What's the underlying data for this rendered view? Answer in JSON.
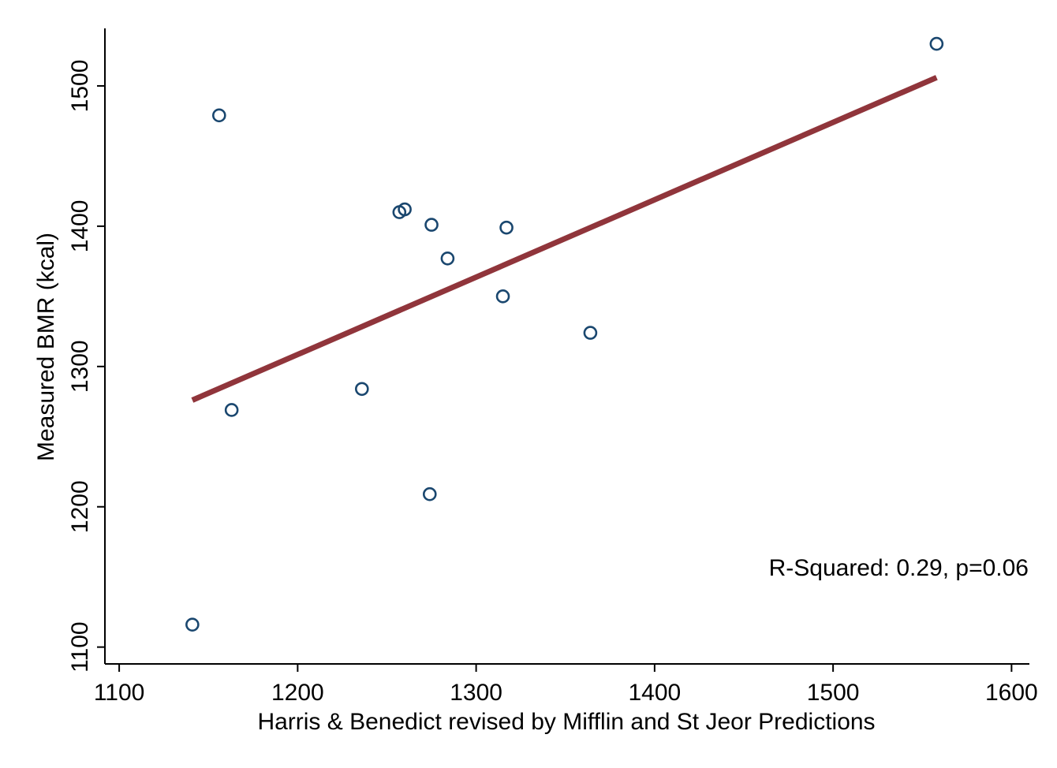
{
  "chart_data": {
    "type": "scatter",
    "title": "",
    "xlabel": "Harris & Benedict revised by Mifflin and St Jeor Predictions",
    "ylabel": "Measured BMR (kcal)",
    "xlim": [
      1092,
      1610
    ],
    "ylim": [
      1088,
      1541
    ],
    "xticks": [
      1100,
      1200,
      1300,
      1400,
      1500,
      1600
    ],
    "yticks": [
      1100,
      1200,
      1300,
      1400,
      1500
    ],
    "grid": false,
    "legend": "none",
    "points": [
      {
        "x": 1141,
        "y": 1116
      },
      {
        "x": 1156,
        "y": 1479
      },
      {
        "x": 1163,
        "y": 1269
      },
      {
        "x": 1236,
        "y": 1284
      },
      {
        "x": 1257,
        "y": 1410
      },
      {
        "x": 1260,
        "y": 1412
      },
      {
        "x": 1274,
        "y": 1209
      },
      {
        "x": 1275,
        "y": 1401
      },
      {
        "x": 1284,
        "y": 1377
      },
      {
        "x": 1315,
        "y": 1350
      },
      {
        "x": 1317,
        "y": 1399
      },
      {
        "x": 1364,
        "y": 1324
      },
      {
        "x": 1558,
        "y": 1530
      }
    ],
    "fit_line": {
      "x1": 1141,
      "y1": 1276,
      "x2": 1558,
      "y2": 1506
    },
    "annotation": "R-Squared: 0.29, p=0.06",
    "colors": {
      "points": "#1a476f",
      "fit_line": "#90353b",
      "axes": "#000000"
    }
  }
}
